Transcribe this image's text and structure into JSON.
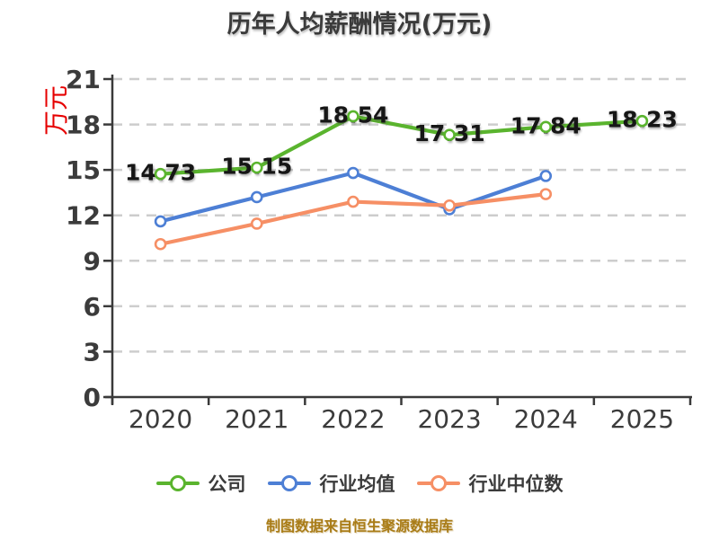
{
  "title": "历年人均薪酬情况(万元)",
  "footer_note": "制图数据来自恒生聚源数据库",
  "colors": {
    "company_green": "#5ab42e",
    "industry_avg_blue": "#4d7fd5",
    "industry_median_orange": "#f68f65",
    "axis_gray": "#3a3a3a",
    "grid_gray": "#cdcdcd",
    "ylabel_red": "#e60000",
    "footer_gold": "#a97c17",
    "label_black": "#161616"
  },
  "chart_data": {
    "type": "line",
    "title": "历年人均薪酬情况(万元)",
    "ylabel": "万元",
    "categories": [
      "2020",
      "2021",
      "2022",
      "2023",
      "2024",
      "2025"
    ],
    "yticks": [
      0,
      3,
      6,
      9,
      12,
      15,
      18,
      21
    ],
    "ylim": [
      0,
      21
    ],
    "grid": "horizontal-dashed",
    "legend_position": "bottom",
    "series": [
      {
        "name": "公司",
        "color": "#5ab42e",
        "values": [
          14.73,
          15.15,
          18.54,
          17.31,
          17.84,
          18.23
        ],
        "labels": [
          "14.73",
          "15.15",
          "18.54",
          "17.31",
          "17.84",
          "18.23"
        ]
      },
      {
        "name": "行业均值",
        "color": "#4d7fd5",
        "values": [
          11.6,
          13.2,
          14.8,
          12.4,
          14.6,
          null
        ],
        "labels": null
      },
      {
        "name": "行业中位数",
        "color": "#f68f65",
        "values": [
          10.1,
          11.45,
          12.9,
          12.65,
          13.4,
          null
        ],
        "labels": null
      }
    ]
  }
}
